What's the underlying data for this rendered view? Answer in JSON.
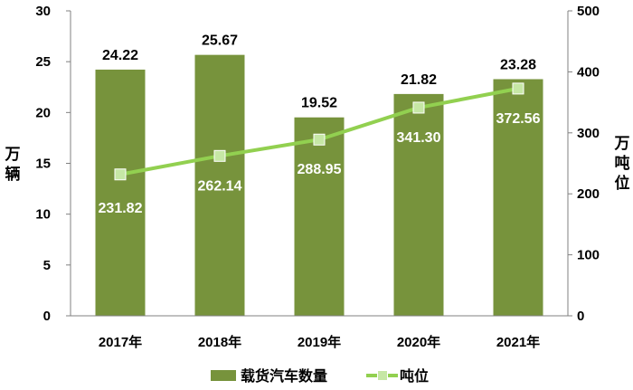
{
  "chart_data": {
    "type": "bar",
    "categories": [
      "2017年",
      "2018年",
      "2019年",
      "2020年",
      "2021年"
    ],
    "series": [
      {
        "name": "载货汽车数量",
        "type": "bar",
        "axis": "left",
        "color": "#77933c",
        "values": [
          24.22,
          25.67,
          19.52,
          21.82,
          23.28
        ],
        "labels": [
          "24.22",
          "25.67",
          "19.52",
          "21.82",
          "23.28"
        ]
      },
      {
        "name": "吨位",
        "type": "line",
        "axis": "right",
        "color": "#92d050",
        "values": [
          231.82,
          262.14,
          288.95,
          341.3,
          372.56
        ],
        "labels": [
          "231.82",
          "262.14",
          "288.95",
          "341.30",
          "372.56"
        ]
      }
    ],
    "y_left": {
      "label": "万辆",
      "range": [
        0,
        30
      ],
      "ticks": [
        "0",
        "5",
        "10",
        "15",
        "20",
        "25",
        "30"
      ]
    },
    "y_right": {
      "label": "万吨位",
      "range": [
        0,
        500
      ],
      "ticks": [
        "0",
        "100",
        "200",
        "300",
        "400",
        "500"
      ]
    },
    "grid": false,
    "legend_position": "bottom"
  }
}
